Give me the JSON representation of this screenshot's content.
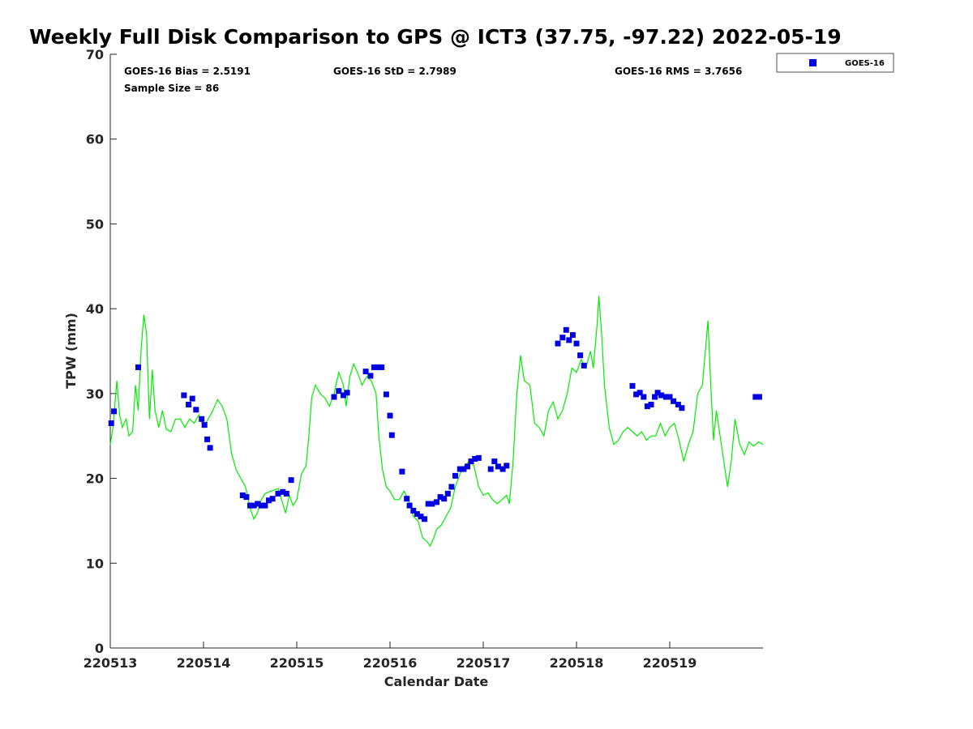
{
  "chart_data": {
    "type": "scatter",
    "title": "Weekly Full Disk Comparison to GPS @ ICT3 (37.75, -97.22) 2022-05-19",
    "xlabel": "Calendar Date",
    "ylabel": "TPW (mm)",
    "xlim": [
      0,
      7.0
    ],
    "ylim": [
      0,
      70
    ],
    "x_unit": "days from 220513 00Z",
    "x_ticks": [
      0,
      1,
      2,
      3,
      4,
      5,
      6
    ],
    "x_tick_labels": [
      "220513",
      "220514",
      "220515",
      "220516",
      "220517",
      "220518",
      "220519"
    ],
    "y_ticks": [
      0,
      10,
      20,
      30,
      40,
      50,
      60,
      70
    ],
    "y_tick_labels": [
      "0",
      "10",
      "20",
      "30",
      "40",
      "50",
      "60",
      "70"
    ],
    "grid": false,
    "legend_position": "top-right-outside",
    "stats": {
      "bias": "GOES-16 Bias = 2.5191",
      "std": "GOES-16 StD = 2.7989",
      "rms": "GOES-16 RMS = 3.7656",
      "sample": "Sample Size = 86"
    },
    "series": [
      {
        "name": "GOES-16",
        "kind": "scatter",
        "marker": "square",
        "color": "#0000e0",
        "points": [
          [
            0.01,
            26.5
          ],
          [
            0.04,
            27.9
          ],
          [
            0.3,
            33.1
          ],
          [
            0.79,
            29.8
          ],
          [
            0.84,
            28.7
          ],
          [
            0.88,
            29.4
          ],
          [
            0.92,
            28.1
          ],
          [
            0.98,
            27.0
          ],
          [
            1.01,
            26.3
          ],
          [
            1.04,
            24.6
          ],
          [
            1.07,
            23.6
          ],
          [
            1.42,
            18.0
          ],
          [
            1.46,
            17.8
          ],
          [
            1.5,
            16.8
          ],
          [
            1.54,
            16.8
          ],
          [
            1.58,
            17.0
          ],
          [
            1.62,
            16.8
          ],
          [
            1.66,
            16.8
          ],
          [
            1.7,
            17.4
          ],
          [
            1.74,
            17.6
          ],
          [
            1.8,
            18.2
          ],
          [
            1.85,
            18.4
          ],
          [
            1.89,
            18.2
          ],
          [
            1.94,
            19.8
          ],
          [
            2.4,
            29.6
          ],
          [
            2.45,
            30.3
          ],
          [
            2.5,
            29.8
          ],
          [
            2.54,
            30.1
          ],
          [
            2.74,
            32.6
          ],
          [
            2.79,
            32.1
          ],
          [
            2.83,
            33.1
          ],
          [
            2.87,
            33.1
          ],
          [
            2.91,
            33.1
          ],
          [
            2.96,
            29.9
          ],
          [
            3.0,
            27.4
          ],
          [
            3.02,
            25.1
          ],
          [
            3.13,
            20.8
          ],
          [
            3.18,
            17.6
          ],
          [
            3.21,
            16.8
          ],
          [
            3.25,
            16.2
          ],
          [
            3.29,
            15.8
          ],
          [
            3.33,
            15.5
          ],
          [
            3.37,
            15.2
          ],
          [
            3.41,
            17.0
          ],
          [
            3.45,
            17.0
          ],
          [
            3.5,
            17.2
          ],
          [
            3.54,
            17.8
          ],
          [
            3.58,
            17.6
          ],
          [
            3.62,
            18.2
          ],
          [
            3.66,
            19.0
          ],
          [
            3.7,
            20.3
          ],
          [
            3.75,
            21.1
          ],
          [
            3.79,
            21.1
          ],
          [
            3.83,
            21.4
          ],
          [
            3.87,
            22.0
          ],
          [
            3.91,
            22.3
          ],
          [
            3.95,
            22.4
          ],
          [
            4.08,
            21.1
          ],
          [
            4.12,
            22.0
          ],
          [
            4.16,
            21.4
          ],
          [
            4.21,
            21.1
          ],
          [
            4.25,
            21.5
          ],
          [
            4.8,
            35.9
          ],
          [
            4.85,
            36.6
          ],
          [
            4.89,
            37.5
          ],
          [
            4.92,
            36.3
          ],
          [
            4.96,
            36.9
          ],
          [
            5.0,
            35.9
          ],
          [
            5.04,
            34.5
          ],
          [
            5.08,
            33.3
          ],
          [
            5.6,
            30.9
          ],
          [
            5.64,
            29.9
          ],
          [
            5.68,
            30.1
          ],
          [
            5.72,
            29.6
          ],
          [
            5.76,
            28.5
          ],
          [
            5.8,
            28.7
          ],
          [
            5.84,
            29.6
          ],
          [
            5.87,
            30.1
          ],
          [
            5.91,
            29.8
          ],
          [
            5.96,
            29.6
          ],
          [
            6.0,
            29.6
          ],
          [
            6.04,
            29.1
          ],
          [
            6.09,
            28.7
          ],
          [
            6.13,
            28.3
          ],
          [
            6.92,
            29.6
          ],
          [
            6.96,
            29.6
          ]
        ]
      },
      {
        "name": "",
        "kind": "line",
        "color": "#00ee00",
        "points": [
          [
            0.0,
            24.0
          ],
          [
            0.03,
            26.0
          ],
          [
            0.07,
            31.5
          ],
          [
            0.1,
            27.5
          ],
          [
            0.13,
            26.0
          ],
          [
            0.17,
            27.0
          ],
          [
            0.2,
            25.0
          ],
          [
            0.24,
            25.5
          ],
          [
            0.27,
            31.0
          ],
          [
            0.3,
            28.0
          ],
          [
            0.33,
            35.0
          ],
          [
            0.36,
            39.3
          ],
          [
            0.39,
            37.0
          ],
          [
            0.42,
            27.0
          ],
          [
            0.45,
            32.8
          ],
          [
            0.48,
            28.0
          ],
          [
            0.52,
            26.0
          ],
          [
            0.56,
            28.0
          ],
          [
            0.6,
            25.8
          ],
          [
            0.65,
            25.5
          ],
          [
            0.7,
            27.0
          ],
          [
            0.75,
            27.0
          ],
          [
            0.8,
            26.0
          ],
          [
            0.85,
            27.0
          ],
          [
            0.9,
            26.5
          ],
          [
            0.95,
            27.5
          ],
          [
            1.0,
            26.0
          ],
          [
            1.05,
            27.0
          ],
          [
            1.1,
            28.0
          ],
          [
            1.15,
            29.3
          ],
          [
            1.2,
            28.5
          ],
          [
            1.25,
            27.0
          ],
          [
            1.3,
            23.0
          ],
          [
            1.35,
            21.0
          ],
          [
            1.4,
            20.0
          ],
          [
            1.45,
            19.0
          ],
          [
            1.5,
            16.5
          ],
          [
            1.54,
            15.2
          ],
          [
            1.58,
            16.0
          ],
          [
            1.62,
            17.5
          ],
          [
            1.66,
            18.2
          ],
          [
            1.7,
            18.4
          ],
          [
            1.75,
            18.6
          ],
          [
            1.8,
            18.8
          ],
          [
            1.85,
            17.0
          ],
          [
            1.88,
            15.9
          ],
          [
            1.92,
            18.0
          ],
          [
            1.96,
            16.8
          ],
          [
            2.0,
            17.5
          ],
          [
            2.05,
            20.5
          ],
          [
            2.1,
            21.5
          ],
          [
            2.13,
            25.0
          ],
          [
            2.16,
            29.5
          ],
          [
            2.2,
            31.0
          ],
          [
            2.25,
            30.0
          ],
          [
            2.3,
            29.5
          ],
          [
            2.35,
            28.5
          ],
          [
            2.4,
            30.0
          ],
          [
            2.45,
            32.5
          ],
          [
            2.5,
            31.0
          ],
          [
            2.53,
            28.5
          ],
          [
            2.57,
            32.0
          ],
          [
            2.61,
            33.5
          ],
          [
            2.65,
            32.5
          ],
          [
            2.7,
            31.0
          ],
          [
            2.75,
            32.0
          ],
          [
            2.8,
            31.5
          ],
          [
            2.85,
            30.0
          ],
          [
            2.88,
            25.0
          ],
          [
            2.92,
            21.0
          ],
          [
            2.96,
            19.0
          ],
          [
            3.0,
            18.5
          ],
          [
            3.05,
            17.5
          ],
          [
            3.1,
            17.5
          ],
          [
            3.15,
            18.5
          ],
          [
            3.2,
            17.5
          ],
          [
            3.25,
            15.5
          ],
          [
            3.3,
            15.0
          ],
          [
            3.35,
            13.0
          ],
          [
            3.4,
            12.5
          ],
          [
            3.43,
            12.0
          ],
          [
            3.47,
            13.0
          ],
          [
            3.5,
            14.0
          ],
          [
            3.55,
            14.5
          ],
          [
            3.6,
            15.5
          ],
          [
            3.65,
            16.5
          ],
          [
            3.7,
            19.0
          ],
          [
            3.75,
            20.5
          ],
          [
            3.8,
            21.5
          ],
          [
            3.85,
            22.0
          ],
          [
            3.9,
            21.5
          ],
          [
            3.95,
            19.0
          ],
          [
            4.0,
            18.0
          ],
          [
            4.05,
            18.3
          ],
          [
            4.1,
            17.5
          ],
          [
            4.15,
            17.0
          ],
          [
            4.2,
            17.5
          ],
          [
            4.25,
            18.0
          ],
          [
            4.28,
            17.0
          ],
          [
            4.32,
            22.0
          ],
          [
            4.36,
            30.0
          ],
          [
            4.4,
            34.5
          ],
          [
            4.44,
            31.5
          ],
          [
            4.5,
            31.0
          ],
          [
            4.55,
            26.5
          ],
          [
            4.6,
            26.0
          ],
          [
            4.65,
            25.0
          ],
          [
            4.7,
            28.0
          ],
          [
            4.75,
            29.0
          ],
          [
            4.8,
            27.0
          ],
          [
            4.85,
            28.0
          ],
          [
            4.9,
            30.0
          ],
          [
            4.95,
            33.0
          ],
          [
            5.0,
            32.5
          ],
          [
            5.05,
            34.0
          ],
          [
            5.1,
            33.0
          ],
          [
            5.15,
            35.0
          ],
          [
            5.18,
            33.0
          ],
          [
            5.22,
            38.0
          ],
          [
            5.24,
            41.5
          ],
          [
            5.27,
            37.0
          ],
          [
            5.3,
            31.0
          ],
          [
            5.35,
            26.0
          ],
          [
            5.4,
            24.0
          ],
          [
            5.45,
            24.5
          ],
          [
            5.5,
            25.5
          ],
          [
            5.55,
            26.0
          ],
          [
            5.6,
            25.5
          ],
          [
            5.65,
            25.0
          ],
          [
            5.7,
            25.5
          ],
          [
            5.75,
            24.5
          ],
          [
            5.8,
            25.0
          ],
          [
            5.85,
            25.0
          ],
          [
            5.9,
            26.5
          ],
          [
            5.95,
            25.0
          ],
          [
            6.0,
            26.0
          ],
          [
            6.05,
            26.5
          ],
          [
            6.1,
            24.5
          ],
          [
            6.15,
            22.0
          ],
          [
            6.2,
            24.0
          ],
          [
            6.25,
            25.5
          ],
          [
            6.3,
            30.0
          ],
          [
            6.35,
            31.0
          ],
          [
            6.39,
            36.0
          ],
          [
            6.41,
            38.6
          ],
          [
            6.44,
            31.0
          ],
          [
            6.47,
            24.5
          ],
          [
            6.5,
            28.0
          ],
          [
            6.54,
            25.0
          ],
          [
            6.58,
            22.0
          ],
          [
            6.62,
            19.0
          ],
          [
            6.66,
            22.0
          ],
          [
            6.7,
            27.0
          ],
          [
            6.75,
            24.0
          ],
          [
            6.8,
            22.8
          ],
          [
            6.85,
            24.3
          ],
          [
            6.9,
            23.8
          ],
          [
            6.95,
            24.3
          ],
          [
            7.0,
            24.0
          ]
        ]
      }
    ]
  }
}
